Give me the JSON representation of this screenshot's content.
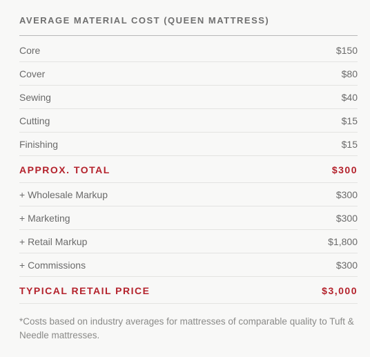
{
  "title": "AVERAGE MATERIAL COST (QUEEN MATTRESS)",
  "colors": {
    "background": "#f8f8f7",
    "text": "#6a6a6a",
    "heading": "#6f6f6f",
    "accent": "#b4222c",
    "divider_strong": "#b8b8b8",
    "divider": "#e3e3e1",
    "footnote": "#8a8a88"
  },
  "typography": {
    "title_fontsize": 13,
    "row_fontsize": 14,
    "footnote_fontsize": 13.5,
    "title_letter_spacing": 1.5,
    "total_letter_spacing": 1.5
  },
  "materials": [
    {
      "label": "Core",
      "value": "$150"
    },
    {
      "label": "Cover",
      "value": "$80"
    },
    {
      "label": "Sewing",
      "value": "$40"
    },
    {
      "label": "Cutting",
      "value": "$15"
    },
    {
      "label": "Finishing",
      "value": "$15"
    }
  ],
  "approx_total": {
    "label": "APPROX. TOTAL",
    "value": "$300"
  },
  "markups": [
    {
      "label": "+ Wholesale Markup",
      "value": "$300"
    },
    {
      "label": "+ Marketing",
      "value": "$300"
    },
    {
      "label": "+ Retail Markup",
      "value": "$1,800"
    },
    {
      "label": "+ Commissions",
      "value": "$300"
    }
  ],
  "retail_total": {
    "label": "TYPICAL RETAIL PRICE",
    "value": "$3,000"
  },
  "footnote": "*Costs based on industry averages for mattresses of comparable quality to Tuft & Needle mattresses."
}
